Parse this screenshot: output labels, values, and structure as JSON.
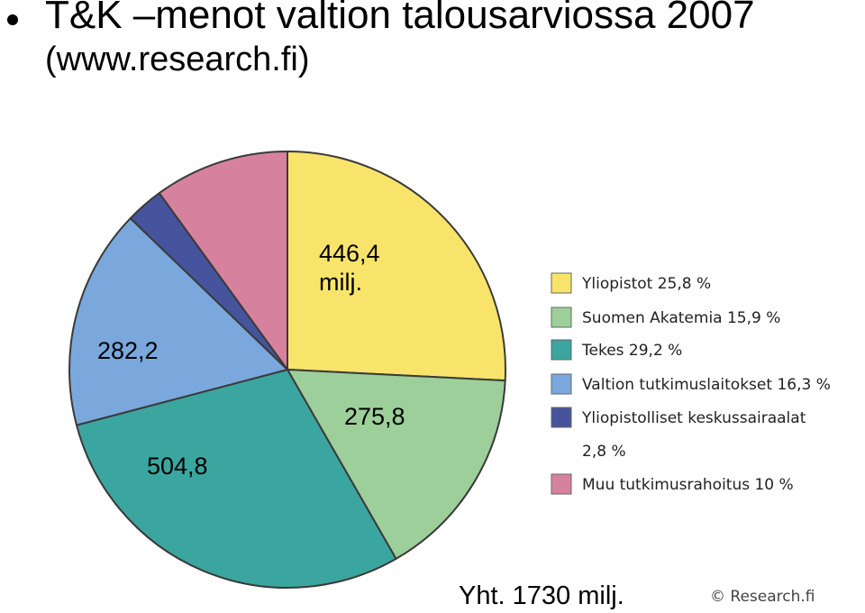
{
  "slide": {
    "title": "T&K –menot valtion talousarviossa 2007",
    "subtitle": "(www.research.fi)",
    "total": "Yht. 1730 milj.",
    "copyright": "© Research.fi"
  },
  "chart_data": {
    "type": "pie",
    "start_angle_deg": 0,
    "direction": "clockwise",
    "slices": [
      {
        "label": "Yliopistot 25,8 %",
        "percent": 25.8,
        "value_label": "446,4 milj.",
        "color": "#f9e46b"
      },
      {
        "label": "Suomen Akatemia 15,9 %",
        "percent": 15.9,
        "value_label": "275,8",
        "color": "#9dcf9a"
      },
      {
        "label": "Tekes 29,2 %",
        "percent": 29.2,
        "value_label": "504,8",
        "color": "#3ba69f"
      },
      {
        "label": "Valtion tutkimuslaitokset 16,3 %",
        "percent": 16.3,
        "value_label": "282,2",
        "color": "#7aa8dd"
      },
      {
        "label": "Yliopistolliset keskussairaalat 2,8 %",
        "percent": 2.8,
        "value_label": "",
        "color": "#45549c"
      },
      {
        "label": "Muu tutkimusrahoitus 10 %",
        "percent": 10.0,
        "value_label": "",
        "color": "#d6829f"
      }
    ],
    "legend_position": "right"
  }
}
